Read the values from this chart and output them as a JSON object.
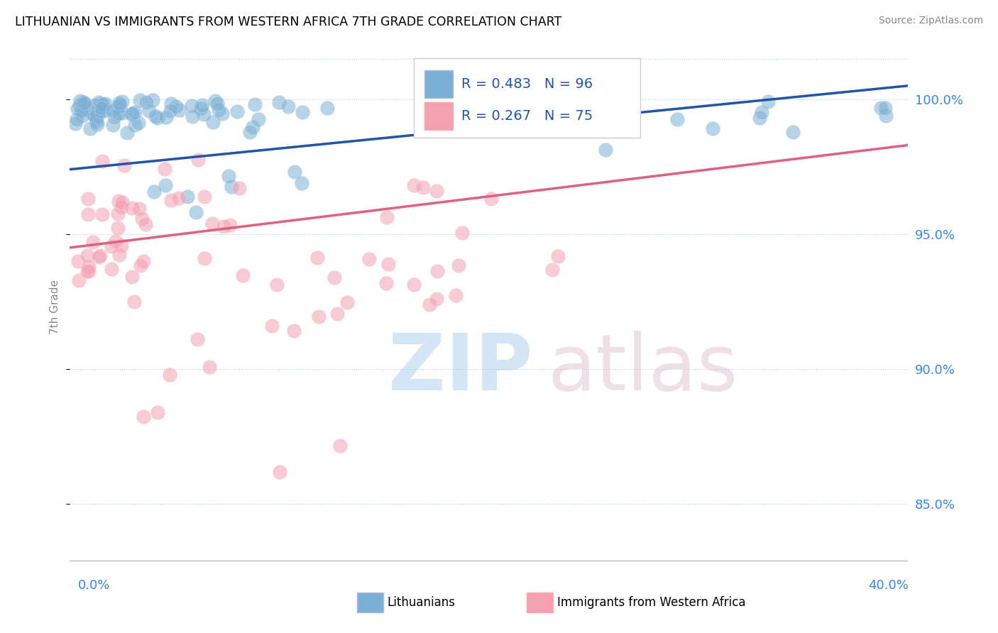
{
  "title": "LITHUANIAN VS IMMIGRANTS FROM WESTERN AFRICA 7TH GRADE CORRELATION CHART",
  "source": "Source: ZipAtlas.com",
  "ylabel": "7th Grade",
  "y_tick_values": [
    0.85,
    0.9,
    0.95,
    1.0
  ],
  "xmin": 0.0,
  "xmax": 0.4,
  "ymin": 0.828,
  "ymax": 1.018,
  "blue_R": 0.483,
  "blue_N": 96,
  "pink_R": 0.267,
  "pink_N": 75,
  "blue_color": "#7BAFD4",
  "pink_color": "#F4A0B0",
  "blue_line_color": "#2255AA",
  "pink_line_color": "#E06080",
  "blue_line_y0": 0.974,
  "blue_line_y1": 1.005,
  "pink_line_y0": 0.945,
  "pink_line_y1": 0.983,
  "legend_blue_label": "Lithuanians",
  "legend_pink_label": "Immigrants from Western Africa"
}
